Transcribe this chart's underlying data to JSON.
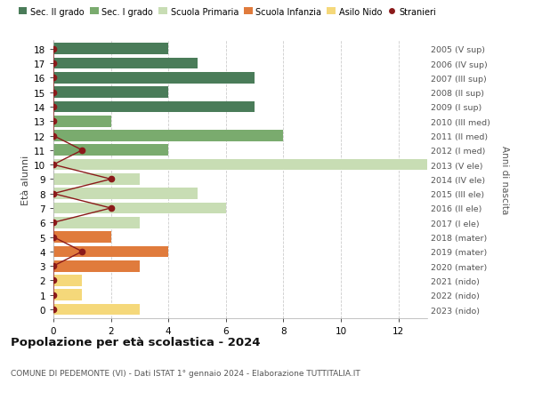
{
  "ages": [
    18,
    17,
    16,
    15,
    14,
    13,
    12,
    11,
    10,
    9,
    8,
    7,
    6,
    5,
    4,
    3,
    2,
    1,
    0
  ],
  "years": [
    "2005 (V sup)",
    "2006 (IV sup)",
    "2007 (III sup)",
    "2008 (II sup)",
    "2009 (I sup)",
    "2010 (III med)",
    "2011 (II med)",
    "2012 (I med)",
    "2013 (V ele)",
    "2014 (IV ele)",
    "2015 (III ele)",
    "2016 (II ele)",
    "2017 (I ele)",
    "2018 (mater)",
    "2019 (mater)",
    "2020 (mater)",
    "2021 (nido)",
    "2022 (nido)",
    "2023 (nido)"
  ],
  "bar_values": [
    4,
    5,
    7,
    4,
    7,
    2,
    8,
    4,
    13,
    3,
    5,
    6,
    3,
    2,
    4,
    3,
    1,
    1,
    3
  ],
  "stranieri_x": [
    0,
    0,
    0,
    0,
    0,
    0,
    0,
    1,
    0,
    2,
    0,
    2,
    0,
    0,
    1,
    0,
    0,
    0,
    0
  ],
  "bar_colors": [
    "#4a7c59",
    "#4a7c59",
    "#4a7c59",
    "#4a7c59",
    "#4a7c59",
    "#7aab6e",
    "#7aab6e",
    "#7aab6e",
    "#c8ddb4",
    "#c8ddb4",
    "#c8ddb4",
    "#c8ddb4",
    "#c8ddb4",
    "#e07b3c",
    "#e07b3c",
    "#e07b3c",
    "#f5d87a",
    "#f5d87a",
    "#f5d87a"
  ],
  "color_sec2": "#4a7c59",
  "color_sec1": "#7aab6e",
  "color_primaria": "#c8ddb4",
  "color_infanzia": "#e07b3c",
  "color_nido_bar": "#f5d87a",
  "color_stranieri": "#8b1a1a",
  "title": "Popolazione per età scolastica - 2024",
  "subtitle": "COMUNE DI PEDEMONTE (VI) - Dati ISTAT 1° gennaio 2024 - Elaborazione TUTTITALIA.IT",
  "ylabel": "Età alunni",
  "ylabel2": "Anni di nascita",
  "xlim": [
    0,
    13
  ],
  "xticks": [
    0,
    2,
    4,
    6,
    8,
    10,
    12
  ],
  "legend_labels": [
    "Sec. II grado",
    "Sec. I grado",
    "Scuola Primaria",
    "Scuola Infanzia",
    "Asilo Nido",
    "Stranieri"
  ],
  "background_color": "#ffffff",
  "grid_color": "#cccccc"
}
